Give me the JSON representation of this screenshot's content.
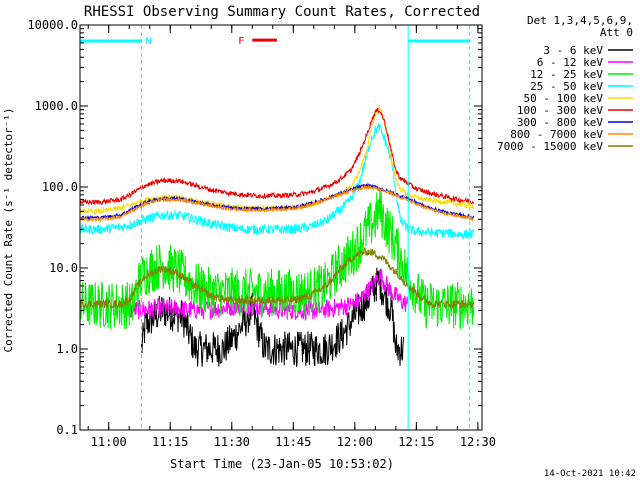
{
  "chart_data": {
    "type": "line",
    "title": "RHESSI Observing Summary Count Rates, Corrected",
    "xlabel": "Start Time (23-Jan-05 10:53:02)",
    "ylabel": "Corrected Count Rate (s⁻¹ detector⁻¹)",
    "x_unit": "minutes since 10:53:02",
    "xlim": [
      0,
      98
    ],
    "ylim": [
      0.1,
      10000
    ],
    "yscale": "log",
    "x_ticks": [
      {
        "x": 7,
        "label": "11:00"
      },
      {
        "x": 22,
        "label": "11:15"
      },
      {
        "x": 37,
        "label": "11:30"
      },
      {
        "x": 52,
        "label": "11:45"
      },
      {
        "x": 67,
        "label": "12:00"
      },
      {
        "x": 82,
        "label": "12:15"
      },
      {
        "x": 97,
        "label": "12:30"
      }
    ],
    "y_ticks": [
      {
        "y": 10000,
        "label": "10000.0"
      },
      {
        "y": 1000,
        "label": "1000.0"
      },
      {
        "y": 100,
        "label": "100.0"
      },
      {
        "y": 10,
        "label": "10.0"
      },
      {
        "y": 1,
        "label": "1.0"
      },
      {
        "y": 0.1,
        "label": "0.1"
      }
    ],
    "legend": {
      "placement": "top-right",
      "header": [
        "Det 1,3,4,5,6,9,",
        "Att 0"
      ]
    },
    "series": [
      {
        "name": "3 - 6 keV",
        "color": "#000000",
        "jitter": 0.22,
        "points": [
          [
            15,
            1
          ],
          [
            16,
            2
          ],
          [
            20,
            3
          ],
          [
            25,
            2.5
          ],
          [
            28,
            1
          ],
          [
            35,
            1
          ],
          [
            38,
            1.5
          ],
          [
            42,
            3
          ],
          [
            45,
            1
          ],
          [
            50,
            1
          ],
          [
            55,
            1
          ],
          [
            60,
            1
          ],
          [
            64,
            1.5
          ],
          [
            68,
            3
          ],
          [
            70,
            4
          ],
          [
            72,
            6
          ],
          [
            73,
            7
          ],
          [
            74,
            5
          ],
          [
            76,
            3
          ],
          [
            77,
            1
          ],
          [
            79,
            1
          ]
        ]
      },
      {
        "name": "6 - 12 keV",
        "color": "#ff00ff",
        "jitter": 0.12,
        "points": [
          [
            12,
            3
          ],
          [
            20,
            3.2
          ],
          [
            30,
            3
          ],
          [
            40,
            3.5
          ],
          [
            50,
            3
          ],
          [
            58,
            3
          ],
          [
            62,
            3.2
          ],
          [
            66,
            3.5
          ],
          [
            68,
            4
          ],
          [
            70,
            5
          ],
          [
            72,
            7
          ],
          [
            73,
            8
          ],
          [
            74,
            7
          ],
          [
            76,
            5
          ],
          [
            78,
            4
          ],
          [
            80,
            3.5
          ]
        ]
      },
      {
        "name": "12 - 25 keV",
        "color": "#00ee00",
        "jitter": 0.3,
        "points": [
          [
            0,
            3.5
          ],
          [
            13,
            3.5
          ],
          [
            14,
            6
          ],
          [
            16,
            9
          ],
          [
            20,
            11
          ],
          [
            24,
            9
          ],
          [
            28,
            6
          ],
          [
            32,
            5
          ],
          [
            36,
            5
          ],
          [
            40,
            5
          ],
          [
            44,
            5
          ],
          [
            48,
            5
          ],
          [
            52,
            5
          ],
          [
            56,
            5
          ],
          [
            60,
            6
          ],
          [
            63,
            10
          ],
          [
            66,
            14
          ],
          [
            68,
            20
          ],
          [
            70,
            30
          ],
          [
            72,
            40
          ],
          [
            73,
            55
          ],
          [
            74,
            40
          ],
          [
            76,
            25
          ],
          [
            78,
            14
          ],
          [
            80,
            8
          ],
          [
            82,
            5
          ],
          [
            84,
            3.5
          ],
          [
            86,
            3.5
          ],
          [
            88,
            3.5
          ],
          [
            90,
            3.5
          ],
          [
            92,
            3.5
          ],
          [
            94,
            3.5
          ],
          [
            96,
            3.5
          ]
        ]
      },
      {
        "name": "25 - 50 keV",
        "color": "#00ffff",
        "jitter": 0.06,
        "points": [
          [
            0,
            30
          ],
          [
            5,
            30
          ],
          [
            10,
            32
          ],
          [
            13,
            35
          ],
          [
            16,
            40
          ],
          [
            20,
            45
          ],
          [
            24,
            45
          ],
          [
            28,
            40
          ],
          [
            32,
            35
          ],
          [
            36,
            32
          ],
          [
            40,
            30
          ],
          [
            44,
            30
          ],
          [
            48,
            30
          ],
          [
            52,
            30
          ],
          [
            56,
            32
          ],
          [
            60,
            38
          ],
          [
            63,
            50
          ],
          [
            66,
            70
          ],
          [
            68,
            110
          ],
          [
            70,
            250
          ],
          [
            71,
            400
          ],
          [
            72,
            500
          ],
          [
            73,
            550
          ],
          [
            74,
            420
          ],
          [
            75,
            300
          ],
          [
            76,
            200
          ],
          [
            77,
            90
          ],
          [
            78,
            40
          ],
          [
            80,
            30
          ],
          [
            82,
            28
          ],
          [
            84,
            28
          ],
          [
            86,
            27
          ],
          [
            88,
            27
          ],
          [
            90,
            27
          ],
          [
            92,
            26
          ],
          [
            94,
            26
          ],
          [
            96,
            26
          ]
        ]
      },
      {
        "name": "50 - 100 keV",
        "color": "#ffdd00",
        "jitter": 0.03,
        "points": [
          [
            0,
            50
          ],
          [
            5,
            50
          ],
          [
            10,
            55
          ],
          [
            13,
            62
          ],
          [
            16,
            70
          ],
          [
            20,
            75
          ],
          [
            24,
            75
          ],
          [
            28,
            68
          ],
          [
            32,
            62
          ],
          [
            36,
            58
          ],
          [
            40,
            55
          ],
          [
            44,
            55
          ],
          [
            48,
            55
          ],
          [
            52,
            56
          ],
          [
            56,
            60
          ],
          [
            60,
            70
          ],
          [
            63,
            80
          ],
          [
            66,
            100
          ],
          [
            68,
            150
          ],
          [
            70,
            300
          ],
          [
            71,
            500
          ],
          [
            72,
            800
          ],
          [
            73,
            1000
          ],
          [
            74,
            700
          ],
          [
            75,
            400
          ],
          [
            76,
            220
          ],
          [
            77,
            130
          ],
          [
            78,
            95
          ],
          [
            80,
            80
          ],
          [
            82,
            75
          ],
          [
            84,
            70
          ],
          [
            86,
            68
          ],
          [
            88,
            66
          ],
          [
            90,
            64
          ],
          [
            92,
            62
          ],
          [
            94,
            60
          ],
          [
            96,
            58
          ]
        ]
      },
      {
        "name": "100 - 300 keV",
        "color": "#ee0000",
        "jitter": 0.03,
        "points": [
          [
            0,
            65
          ],
          [
            5,
            65
          ],
          [
            10,
            70
          ],
          [
            13,
            85
          ],
          [
            16,
            105
          ],
          [
            20,
            120
          ],
          [
            24,
            120
          ],
          [
            28,
            105
          ],
          [
            32,
            92
          ],
          [
            36,
            85
          ],
          [
            40,
            80
          ],
          [
            44,
            78
          ],
          [
            48,
            78
          ],
          [
            52,
            80
          ],
          [
            56,
            85
          ],
          [
            60,
            100
          ],
          [
            63,
            120
          ],
          [
            66,
            160
          ],
          [
            68,
            250
          ],
          [
            70,
            450
          ],
          [
            71,
            650
          ],
          [
            72,
            850
          ],
          [
            73,
            900
          ],
          [
            74,
            700
          ],
          [
            75,
            450
          ],
          [
            76,
            260
          ],
          [
            77,
            160
          ],
          [
            78,
            130
          ],
          [
            80,
            110
          ],
          [
            82,
            95
          ],
          [
            84,
            88
          ],
          [
            86,
            82
          ],
          [
            88,
            78
          ],
          [
            90,
            74
          ],
          [
            92,
            70
          ],
          [
            94,
            68
          ],
          [
            96,
            65
          ]
        ]
      },
      {
        "name": "300 - 800 keV",
        "color": "#0000dd",
        "jitter": 0.02,
        "points": [
          [
            0,
            42
          ],
          [
            5,
            42
          ],
          [
            10,
            45
          ],
          [
            13,
            55
          ],
          [
            16,
            65
          ],
          [
            20,
            72
          ],
          [
            24,
            72
          ],
          [
            28,
            66
          ],
          [
            32,
            60
          ],
          [
            36,
            56
          ],
          [
            40,
            54
          ],
          [
            44,
            54
          ],
          [
            48,
            55
          ],
          [
            52,
            56
          ],
          [
            56,
            62
          ],
          [
            60,
            72
          ],
          [
            63,
            82
          ],
          [
            66,
            92
          ],
          [
            68,
            100
          ],
          [
            70,
            105
          ],
          [
            72,
            100
          ],
          [
            74,
            92
          ],
          [
            76,
            85
          ],
          [
            78,
            78
          ],
          [
            80,
            72
          ],
          [
            82,
            65
          ],
          [
            84,
            58
          ],
          [
            86,
            54
          ],
          [
            88,
            50
          ],
          [
            90,
            48
          ],
          [
            92,
            46
          ],
          [
            94,
            44
          ],
          [
            96,
            42
          ]
        ]
      },
      {
        "name": "800 - 7000 keV",
        "color": "#ff8800",
        "jitter": 0.02,
        "points": [
          [
            0,
            40
          ],
          [
            5,
            40
          ],
          [
            10,
            43
          ],
          [
            13,
            52
          ],
          [
            16,
            62
          ],
          [
            20,
            70
          ],
          [
            24,
            70
          ],
          [
            28,
            64
          ],
          [
            32,
            58
          ],
          [
            36,
            54
          ],
          [
            40,
            52
          ],
          [
            44,
            52
          ],
          [
            48,
            53
          ],
          [
            52,
            54
          ],
          [
            56,
            60
          ],
          [
            60,
            70
          ],
          [
            63,
            80
          ],
          [
            66,
            90
          ],
          [
            68,
            96
          ],
          [
            70,
            100
          ],
          [
            72,
            96
          ],
          [
            74,
            90
          ],
          [
            76,
            82
          ],
          [
            78,
            75
          ],
          [
            80,
            68
          ],
          [
            82,
            62
          ],
          [
            84,
            56
          ],
          [
            86,
            52
          ],
          [
            88,
            48
          ],
          [
            90,
            46
          ],
          [
            92,
            44
          ],
          [
            94,
            42
          ],
          [
            96,
            40
          ]
        ]
      },
      {
        "name": "7000 - 15000 keV",
        "color": "#808000",
        "jitter": 0.05,
        "points": [
          [
            0,
            3.6
          ],
          [
            10,
            3.6
          ],
          [
            12,
            4
          ],
          [
            14,
            6
          ],
          [
            16,
            8
          ],
          [
            20,
            10
          ],
          [
            24,
            8.5
          ],
          [
            28,
            6
          ],
          [
            32,
            4.5
          ],
          [
            36,
            4
          ],
          [
            40,
            4
          ],
          [
            44,
            4
          ],
          [
            48,
            4
          ],
          [
            52,
            4
          ],
          [
            56,
            4.5
          ],
          [
            60,
            6
          ],
          [
            63,
            9
          ],
          [
            66,
            13
          ],
          [
            68,
            15
          ],
          [
            70,
            16
          ],
          [
            72,
            15
          ],
          [
            74,
            13
          ],
          [
            76,
            10
          ],
          [
            78,
            8
          ],
          [
            80,
            6
          ],
          [
            82,
            5
          ],
          [
            84,
            4
          ],
          [
            86,
            3.6
          ],
          [
            88,
            3.6
          ],
          [
            90,
            3.6
          ],
          [
            92,
            3.6
          ],
          [
            94,
            3.6
          ],
          [
            96,
            3.6
          ]
        ]
      }
    ],
    "annotations": {
      "night_bars": [
        {
          "from": 0,
          "to": 15
        },
        {
          "from": 80,
          "to": 95
        }
      ],
      "night_color": "#00ffff",
      "n_label": "N",
      "n_label_color": "#00ffff",
      "flare_label": "F",
      "flare_color": "#ee0000",
      "flare_bar": {
        "from": 42,
        "to": 48,
        "y": 6500
      },
      "vlines_dashed": [
        15,
        95
      ],
      "vlines_solid": [
        0,
        80
      ]
    },
    "grid": false
  },
  "footer": {
    "timestamp": "14-Oct-2021 10:42"
  }
}
